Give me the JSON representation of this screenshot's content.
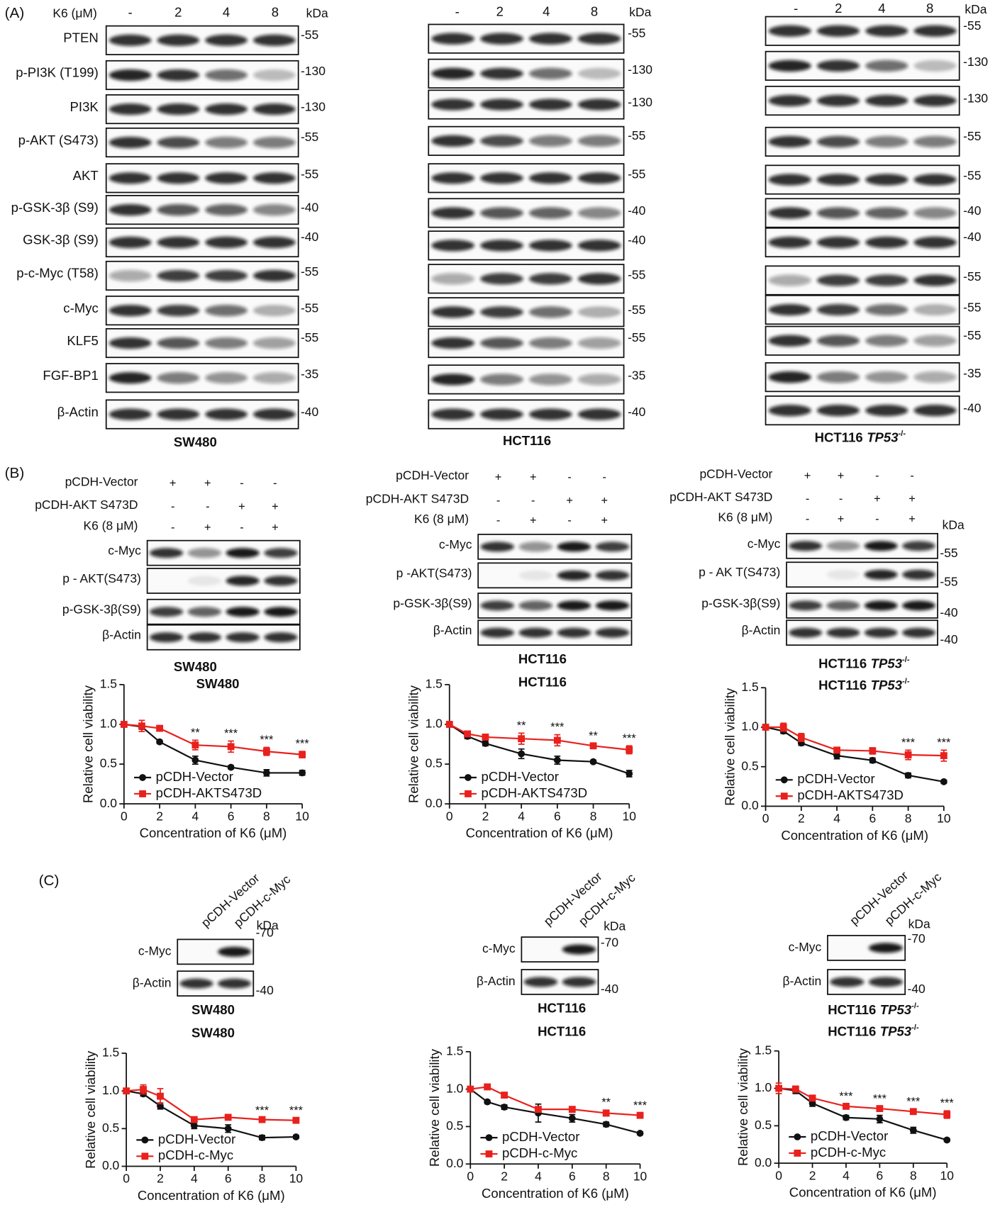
{
  "panels": {
    "a": "(A)",
    "b": "(B)",
    "c": "(C)"
  },
  "panel_a": {
    "treatment_label": "K6 (μM)",
    "lanes": [
      "-",
      "2",
      "4",
      "8"
    ],
    "unit": "kDa",
    "rows": [
      "PTEN",
      "p-PI3K (T199)",
      "PI3K",
      "p-AKT (S473)",
      "AKT",
      "p-GSK-3β (S9)",
      "GSK-3β (S9)",
      "p-c-Myc (T58)",
      "c-Myc",
      "KLF5",
      "FGF-BP1",
      "β-Actin"
    ],
    "blots": [
      {
        "cell": "SW480",
        "markers": [
          "-55",
          "-130",
          "-130",
          "-55",
          "-55",
          "-40",
          "-40",
          "-55",
          "-55",
          "-55",
          "-35",
          "-40"
        ]
      },
      {
        "cell": "HCT116",
        "markers": [
          "-55",
          "-130",
          "-130",
          "-55",
          "-55",
          "-40",
          "-40",
          "-55",
          "-55",
          "-55",
          "-35",
          "-40"
        ]
      },
      {
        "cell": "HCT116",
        "gene": "TP53",
        "sup": "-/-",
        "markers": [
          "-55",
          "-130",
          "-130",
          "-55",
          "-55",
          "-40",
          "-40",
          "-55",
          "-55",
          "-55",
          "-35",
          "-40"
        ]
      }
    ]
  },
  "panel_b": {
    "conditions": [
      {
        "label": "pCDH-Vector",
        "signs": [
          "+",
          "+",
          "-",
          "-"
        ]
      },
      {
        "label": "pCDH-AKT S473D",
        "signs": [
          "-",
          "-",
          "+",
          "+"
        ]
      },
      {
        "label": "K6 (8 μM)",
        "signs": [
          "-",
          "+",
          "-",
          "+"
        ]
      }
    ],
    "unit": "kDa",
    "blots": [
      {
        "cell": "SW480",
        "rows": [
          "c-Myc",
          "p - AKT(S473)",
          "p-GSK-3β(S9)",
          "β-Actin"
        ]
      },
      {
        "cell": "HCT116",
        "rows": [
          "c-Myc",
          "p   -AKT(S473)",
          "p-GSK-3β(S9)",
          "β-Actin"
        ]
      },
      {
        "cell": "HCT116",
        "gene": "TP53",
        "sup": "-/-",
        "rows": [
          "c-Myc",
          "p - AK   T(S473)",
          "p-GSK-3β(S9)",
          "β-Actin"
        ],
        "markers": [
          "-55",
          "-55",
          "-40",
          "-40"
        ]
      }
    ]
  },
  "panel_c": {
    "columns": [
      "pCDH-Vector",
      "pCDH-c-Myc"
    ],
    "rows": [
      "c-Myc",
      "β-Actin"
    ],
    "unit": "kDa",
    "markers": [
      "-70",
      "-40"
    ],
    "blots": [
      {
        "cell": "SW480"
      },
      {
        "cell": "HCT116"
      },
      {
        "cell": "HCT116",
        "gene": "TP53",
        "sup": "-/-"
      }
    ]
  },
  "chart_data": [
    {
      "type": "line",
      "title": "SW480",
      "xlabel": "Concentration of K6 (μM)",
      "ylabel": "Relative cell viability",
      "x": [
        0,
        1,
        2,
        4,
        6,
        8,
        10
      ],
      "xlim": [
        0,
        10
      ],
      "xticks": [
        0,
        2,
        4,
        6,
        8,
        10
      ],
      "ylim": [
        0,
        1.5
      ],
      "yticks": [
        {
          "value": 0,
          "label": "0.0"
        },
        0.5,
        {
          "value": 1,
          "label": "1.0"
        },
        1.5
      ],
      "legend": "lower left",
      "series": [
        {
          "name": "pCDH-Vector",
          "color": "#111111",
          "marker": "circle",
          "values": [
            1,
            0.97,
            0.78,
            0.55,
            0.46,
            0.39,
            0.39
          ],
          "errors": [
            0.02,
            0.03,
            0.02,
            0.05,
            0.02,
            0.04,
            0.03
          ]
        },
        {
          "name": "pCDH-AKTS473D",
          "color": "#e8211d",
          "marker": "square",
          "values": [
            1,
            0.98,
            0.95,
            0.74,
            0.72,
            0.66,
            0.62
          ],
          "errors": [
            0.02,
            0.07,
            0.02,
            0.06,
            0.07,
            0.05,
            0.04
          ]
        }
      ],
      "annotations": [
        {
          "x": 4,
          "text": "**"
        },
        {
          "x": 6,
          "text": "***"
        },
        {
          "x": 8,
          "text": "***"
        },
        {
          "x": 10,
          "text": "***"
        }
      ]
    },
    {
      "type": "line",
      "title": "HCT116",
      "xlabel": "Concentration of K6 (μM)",
      "ylabel": "Relative cell viability",
      "x": [
        0,
        1,
        2,
        4,
        6,
        8,
        10
      ],
      "xlim": [
        0,
        10
      ],
      "xticks": [
        0,
        2,
        4,
        6,
        8,
        10
      ],
      "ylim": [
        0,
        1.5
      ],
      "yticks": [
        {
          "value": 0,
          "label": "0.0"
        },
        0.5,
        {
          "value": 1,
          "label": "1.0"
        },
        1.5
      ],
      "legend": "lower left",
      "series": [
        {
          "name": "pCDH-Vector",
          "color": "#111111",
          "marker": "circle",
          "values": [
            1,
            0.85,
            0.76,
            0.63,
            0.55,
            0.53,
            0.38
          ],
          "errors": [
            0.02,
            0.03,
            0.03,
            0.06,
            0.05,
            0.02,
            0.04
          ]
        },
        {
          "name": "pCDH-AKTS473D",
          "color": "#e8211d",
          "marker": "square",
          "values": [
            1,
            0.88,
            0.84,
            0.82,
            0.8,
            0.73,
            0.68
          ],
          "errors": [
            0.02,
            0.03,
            0.03,
            0.07,
            0.07,
            0.03,
            0.05
          ]
        }
      ],
      "annotations": [
        {
          "x": 4,
          "text": "**"
        },
        {
          "x": 6,
          "text": "***"
        },
        {
          "x": 8,
          "text": "**"
        },
        {
          "x": 10,
          "text": "***"
        }
      ]
    },
    {
      "type": "line",
      "title": "HCT116",
      "title_gene": "TP53",
      "title_sup": "-/-",
      "xlabel": "Concentration of K6 (μM)",
      "ylabel": "Relative cell viability",
      "x": [
        0,
        1,
        2,
        4,
        6,
        8,
        10
      ],
      "xlim": [
        0,
        10
      ],
      "xticks": [
        0,
        2,
        4,
        6,
        8,
        10
      ],
      "ylim": [
        0,
        1.5
      ],
      "yticks": [
        {
          "value": 0,
          "label": "0.0"
        },
        0.5,
        {
          "value": 1,
          "label": "1.0"
        },
        1.5
      ],
      "legend": "lower left",
      "series": [
        {
          "name": "pCDH-Vector",
          "color": "#111111",
          "marker": "circle",
          "values": [
            1,
            0.95,
            0.8,
            0.64,
            0.58,
            0.39,
            0.31
          ],
          "errors": [
            0.02,
            0.03,
            0.03,
            0.04,
            0.03,
            0.03,
            0.02
          ]
        },
        {
          "name": "pCDH-AKTS473D",
          "color": "#e8211d",
          "marker": "square",
          "values": [
            1,
            1.0,
            0.87,
            0.71,
            0.7,
            0.65,
            0.64
          ],
          "errors": [
            0.03,
            0.05,
            0.05,
            0.03,
            0.04,
            0.06,
            0.07
          ]
        }
      ],
      "annotations": [
        {
          "x": 8,
          "text": "***"
        },
        {
          "x": 10,
          "text": "***"
        }
      ]
    },
    {
      "type": "line",
      "title": "SW480",
      "xlabel": "Concentration of K6 (μM)",
      "ylabel": "Relative cell viability",
      "x": [
        0,
        1,
        2,
        4,
        6,
        8,
        10
      ],
      "xlim": [
        0,
        10
      ],
      "xticks": [
        0,
        2,
        4,
        6,
        8,
        10
      ],
      "ylim": [
        0,
        1.5
      ],
      "yticks": [
        {
          "value": 0,
          "label": "0.0"
        },
        0.5,
        {
          "value": 1,
          "label": "1.0"
        },
        1.5
      ],
      "legend": "lower left",
      "series": [
        {
          "name": "pCDH-Vector",
          "color": "#111111",
          "marker": "circle",
          "values": [
            1,
            0.96,
            0.8,
            0.54,
            0.5,
            0.38,
            0.39
          ],
          "errors": [
            0.02,
            0.03,
            0.04,
            0.04,
            0.05,
            0.03,
            0.02
          ]
        },
        {
          "name": "pCDH-c-Myc",
          "color": "#e8211d",
          "marker": "square",
          "values": [
            1,
            1.02,
            0.93,
            0.62,
            0.65,
            0.62,
            0.61
          ],
          "errors": [
            0.02,
            0.06,
            0.1,
            0.03,
            0.02,
            0.02,
            0.03
          ]
        }
      ],
      "annotations": [
        {
          "x": 8,
          "text": "***"
        },
        {
          "x": 10,
          "text": "***"
        }
      ]
    },
    {
      "type": "line",
      "title": "HCT116",
      "xlabel": "Concentration of K6 (μM)",
      "ylabel": "Relative cell viability",
      "x": [
        0,
        1,
        2,
        4,
        6,
        8,
        10
      ],
      "xlim": [
        0,
        10
      ],
      "xticks": [
        0,
        2,
        4,
        6,
        8,
        10
      ],
      "ylim": [
        0,
        1.5
      ],
      "yticks": [
        {
          "value": 0,
          "label": "0.0"
        },
        0.5,
        {
          "value": 1,
          "label": "1.0"
        },
        1.5
      ],
      "legend": "lower left",
      "series": [
        {
          "name": "pCDH-Vector",
          "color": "#111111",
          "marker": "circle",
          "values": [
            1,
            0.83,
            0.76,
            0.68,
            0.61,
            0.53,
            0.41
          ],
          "errors": [
            0.02,
            0.02,
            0.03,
            0.12,
            0.05,
            0.03,
            0.02
          ]
        },
        {
          "name": "pCDH-c-Myc",
          "color": "#e8211d",
          "marker": "square",
          "values": [
            1,
            1.03,
            0.92,
            0.73,
            0.73,
            0.68,
            0.65
          ],
          "errors": [
            0.02,
            0.02,
            0.03,
            0.03,
            0.03,
            0.04,
            0.03
          ]
        }
      ],
      "annotations": [
        {
          "x": 8,
          "text": "**"
        },
        {
          "x": 10,
          "text": "***"
        }
      ]
    },
    {
      "type": "line",
      "title": "HCT116",
      "title_gene": "TP53",
      "title_sup": "-/-",
      "xlabel": "Concentration of K6 (μM)",
      "ylabel": "Relative cell viability",
      "x": [
        0,
        1,
        2,
        4,
        6,
        8,
        10
      ],
      "xlim": [
        0,
        10
      ],
      "xticks": [
        0,
        2,
        4,
        6,
        8,
        10
      ],
      "ylim": [
        0,
        1.5
      ],
      "yticks": [
        {
          "value": 0,
          "label": "0.0"
        },
        0.5,
        {
          "value": 1,
          "label": "1.0"
        },
        1.5
      ],
      "legend": "lower left",
      "series": [
        {
          "name": "pCDH-Vector",
          "color": "#111111",
          "marker": "circle",
          "values": [
            1,
            0.97,
            0.8,
            0.61,
            0.59,
            0.44,
            0.31
          ],
          "errors": [
            0.02,
            0.04,
            0.04,
            0.03,
            0.05,
            0.04,
            0.02
          ]
        },
        {
          "name": "pCDH-c-Myc",
          "color": "#e8211d",
          "marker": "square",
          "values": [
            1,
            0.99,
            0.87,
            0.76,
            0.73,
            0.69,
            0.65
          ],
          "errors": [
            0.07,
            0.04,
            0.03,
            0.03,
            0.03,
            0.03,
            0.05
          ]
        }
      ],
      "annotations": [
        {
          "x": 4,
          "text": "***"
        },
        {
          "x": 6,
          "text": "***"
        },
        {
          "x": 8,
          "text": "***"
        },
        {
          "x": 10,
          "text": "***"
        }
      ]
    }
  ]
}
